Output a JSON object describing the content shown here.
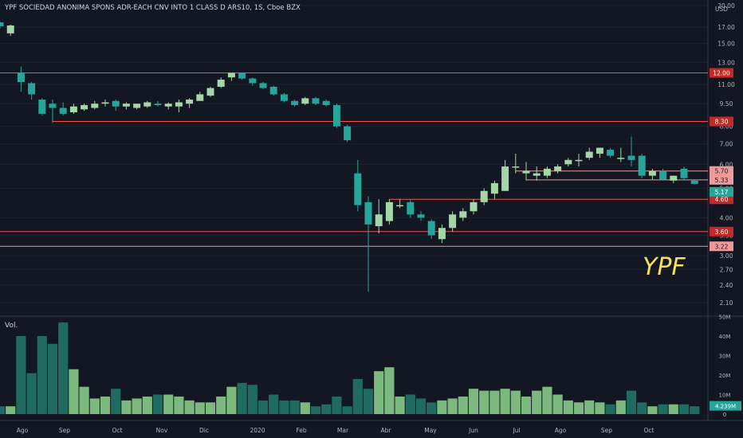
{
  "header": {
    "title": "YPF SOCIEDAD ANONIMA SPONS ADR-EACH CNV INTO 1 CLASS D ARS10, 1S, Cboe BZX",
    "currency": "USD",
    "brand_label": "YPF"
  },
  "volume_pane": {
    "label": "Vol."
  },
  "colors": {
    "background": "#131722",
    "up": "#a5d6a7",
    "down": "#26a69a",
    "vol_up": "#7cb97f",
    "vol_down": "#1f6b5f",
    "line": "#ef5350",
    "label_strong": "#c62828",
    "label_light": "#ef9a9a",
    "label_last": "#26a69a",
    "axis_text": "#b2b5be",
    "brand": "#f5e152"
  },
  "chart_data": [
    {
      "type": "candlestick",
      "scale": "log",
      "ylim": [
        2.0,
        20.0
      ],
      "y_ticks": [
        "20.00",
        "17.00",
        "15.00",
        "13.00",
        "11.00",
        "9.50",
        "8.00",
        "7.00",
        "6.00",
        "5.00",
        "4.00",
        "3.50",
        "3.00",
        "2.70",
        "2.40",
        "2.10"
      ],
      "x_ticks": [
        "Ago",
        "Sep",
        "Oct",
        "Nov",
        "Dic",
        "2020",
        "Feb",
        "Mar",
        "Abr",
        "May",
        "Jun",
        "Jul",
        "Ago",
        "Sep",
        "Oct"
      ],
      "candles": [
        {
          "o": 17.6,
          "h": 17.7,
          "l": 16.8,
          "c": 17.1
        },
        {
          "o": 16.2,
          "h": 17.3,
          "l": 15.9,
          "c": 17.2
        },
        {
          "o": 12.0,
          "h": 12.6,
          "l": 10.4,
          "c": 11.2
        },
        {
          "o": 11.1,
          "h": 11.2,
          "l": 9.8,
          "c": 10.2
        },
        {
          "o": 9.8,
          "h": 9.9,
          "l": 8.7,
          "c": 8.8
        },
        {
          "o": 9.5,
          "h": 9.8,
          "l": 8.2,
          "c": 9.2
        },
        {
          "o": 9.2,
          "h": 9.6,
          "l": 8.7,
          "c": 8.8
        },
        {
          "o": 8.9,
          "h": 9.5,
          "l": 8.8,
          "c": 9.3
        },
        {
          "o": 9.1,
          "h": 9.5,
          "l": 9.0,
          "c": 9.4
        },
        {
          "o": 9.2,
          "h": 9.7,
          "l": 9.1,
          "c": 9.5
        },
        {
          "o": 9.5,
          "h": 9.8,
          "l": 9.3,
          "c": 9.6
        },
        {
          "o": 9.7,
          "h": 9.8,
          "l": 9.0,
          "c": 9.3
        },
        {
          "o": 9.3,
          "h": 9.6,
          "l": 9.1,
          "c": 9.5
        },
        {
          "o": 9.2,
          "h": 9.5,
          "l": 9.1,
          "c": 9.5
        },
        {
          "o": 9.3,
          "h": 9.7,
          "l": 9.2,
          "c": 9.6
        },
        {
          "o": 9.5,
          "h": 9.7,
          "l": 9.3,
          "c": 9.4
        },
        {
          "o": 9.3,
          "h": 9.6,
          "l": 9.1,
          "c": 9.5
        },
        {
          "o": 9.3,
          "h": 9.8,
          "l": 8.9,
          "c": 9.6
        },
        {
          "o": 9.5,
          "h": 9.9,
          "l": 9.2,
          "c": 9.8
        },
        {
          "o": 9.7,
          "h": 10.4,
          "l": 9.7,
          "c": 10.2
        },
        {
          "o": 10.1,
          "h": 10.8,
          "l": 10.0,
          "c": 10.7
        },
        {
          "o": 10.8,
          "h": 11.6,
          "l": 10.7,
          "c": 11.4
        },
        {
          "o": 11.6,
          "h": 12.0,
          "l": 11.3,
          "c": 12.0
        },
        {
          "o": 12.0,
          "h": 12.0,
          "l": 11.4,
          "c": 11.5
        },
        {
          "o": 11.5,
          "h": 11.6,
          "l": 10.9,
          "c": 11.1
        },
        {
          "o": 11.1,
          "h": 11.2,
          "l": 10.6,
          "c": 10.7
        },
        {
          "o": 10.8,
          "h": 10.9,
          "l": 10.1,
          "c": 10.2
        },
        {
          "o": 10.2,
          "h": 10.3,
          "l": 9.6,
          "c": 9.7
        },
        {
          "o": 9.7,
          "h": 9.8,
          "l": 9.3,
          "c": 9.4
        },
        {
          "o": 9.5,
          "h": 10.0,
          "l": 9.4,
          "c": 9.9
        },
        {
          "o": 9.9,
          "h": 10.0,
          "l": 9.4,
          "c": 9.5
        },
        {
          "o": 9.7,
          "h": 9.8,
          "l": 9.3,
          "c": 9.4
        },
        {
          "o": 9.4,
          "h": 9.5,
          "l": 7.9,
          "c": 8.0
        },
        {
          "o": 8.0,
          "h": 8.1,
          "l": 7.1,
          "c": 7.2
        },
        {
          "o": 5.6,
          "h": 6.2,
          "l": 4.2,
          "c": 4.4
        },
        {
          "o": 4.5,
          "h": 4.7,
          "l": 2.28,
          "c": 3.8
        },
        {
          "o": 3.75,
          "h": 4.6,
          "l": 3.55,
          "c": 4.1
        },
        {
          "o": 3.9,
          "h": 4.6,
          "l": 3.8,
          "c": 4.5
        },
        {
          "o": 4.4,
          "h": 4.6,
          "l": 4.3,
          "c": 4.4
        },
        {
          "o": 4.5,
          "h": 4.6,
          "l": 4.0,
          "c": 4.1
        },
        {
          "o": 4.1,
          "h": 4.2,
          "l": 3.9,
          "c": 4.0
        },
        {
          "o": 3.9,
          "h": 3.95,
          "l": 3.4,
          "c": 3.5
        },
        {
          "o": 3.4,
          "h": 3.8,
          "l": 3.3,
          "c": 3.7
        },
        {
          "o": 3.7,
          "h": 4.2,
          "l": 3.6,
          "c": 4.1
        },
        {
          "o": 4.0,
          "h": 4.3,
          "l": 3.9,
          "c": 4.2
        },
        {
          "o": 4.2,
          "h": 4.6,
          "l": 4.1,
          "c": 4.5
        },
        {
          "o": 4.5,
          "h": 5.0,
          "l": 4.4,
          "c": 4.9
        },
        {
          "o": 4.8,
          "h": 5.3,
          "l": 4.6,
          "c": 5.2
        },
        {
          "o": 4.9,
          "h": 6.2,
          "l": 4.9,
          "c": 5.9
        },
        {
          "o": 5.9,
          "h": 6.5,
          "l": 5.6,
          "c": 5.9
        },
        {
          "o": 5.6,
          "h": 6.1,
          "l": 5.3,
          "c": 5.7
        },
        {
          "o": 5.5,
          "h": 5.9,
          "l": 5.3,
          "c": 5.6
        },
        {
          "o": 5.5,
          "h": 5.9,
          "l": 5.4,
          "c": 5.8
        },
        {
          "o": 5.7,
          "h": 6.0,
          "l": 5.6,
          "c": 5.9
        },
        {
          "o": 6.0,
          "h": 6.3,
          "l": 5.9,
          "c": 6.2
        },
        {
          "o": 6.2,
          "h": 6.5,
          "l": 5.9,
          "c": 6.2
        },
        {
          "o": 6.3,
          "h": 6.8,
          "l": 6.2,
          "c": 6.6
        },
        {
          "o": 6.5,
          "h": 6.8,
          "l": 6.3,
          "c": 6.8
        },
        {
          "o": 6.7,
          "h": 6.8,
          "l": 6.3,
          "c": 6.4
        },
        {
          "o": 6.3,
          "h": 6.8,
          "l": 6.1,
          "c": 6.3
        },
        {
          "o": 6.4,
          "h": 7.4,
          "l": 5.9,
          "c": 6.2
        },
        {
          "o": 6.4,
          "h": 6.5,
          "l": 5.4,
          "c": 5.5
        },
        {
          "o": 5.5,
          "h": 5.8,
          "l": 5.35,
          "c": 5.7
        },
        {
          "o": 5.7,
          "h": 5.8,
          "l": 5.3,
          "c": 5.35
        },
        {
          "o": 5.3,
          "h": 5.5,
          "l": 5.2,
          "c": 5.5
        },
        {
          "o": 5.8,
          "h": 5.9,
          "l": 5.3,
          "c": 5.4
        },
        {
          "o": 5.3,
          "h": 5.3,
          "l": 5.15,
          "c": 5.17
        }
      ],
      "hlines": [
        {
          "y": 12.0,
          "label": "12.00",
          "x_start": 0,
          "style": "strong"
        },
        {
          "y": 8.3,
          "label": "8.30",
          "x_start": 5,
          "style": "strong"
        },
        {
          "y": 5.7,
          "label": "5.70",
          "x_start": 49,
          "style": "light"
        },
        {
          "y": 5.33,
          "label": "5.33",
          "x_start": 50,
          "style": "light"
        },
        {
          "y": 4.6,
          "label": "4.60",
          "x_start": 37,
          "style": "strong"
        },
        {
          "y": 3.6,
          "label": "3.60",
          "x_start": 0,
          "style": "strong"
        },
        {
          "y": 3.22,
          "label": "3.22",
          "x_start": 0,
          "style": "light"
        }
      ],
      "last_price": {
        "value": 5.17,
        "label": "5.17"
      }
    },
    {
      "type": "bar",
      "title": "Vol.",
      "ylim": [
        0,
        50
      ],
      "unit": "M",
      "y_ticks": [
        "50M",
        "40M",
        "30M",
        "20M",
        "10M",
        "0"
      ],
      "values": [
        4,
        4,
        40,
        21,
        40,
        36,
        47,
        23,
        14,
        8,
        9,
        13,
        7,
        8,
        9,
        10,
        10,
        9,
        7,
        6,
        6,
        9,
        14,
        16,
        15,
        7,
        10,
        7,
        7,
        6,
        4,
        5,
        9,
        4,
        18,
        13,
        22,
        24,
        9,
        10,
        8,
        6,
        7,
        8,
        9,
        13,
        12,
        12,
        13,
        12,
        9,
        12,
        14,
        10,
        7,
        6,
        7,
        6,
        5,
        7,
        12,
        6,
        4,
        5,
        5,
        5,
        4
      ],
      "last_value": {
        "value": 4.239,
        "label": "4.239M"
      }
    }
  ]
}
